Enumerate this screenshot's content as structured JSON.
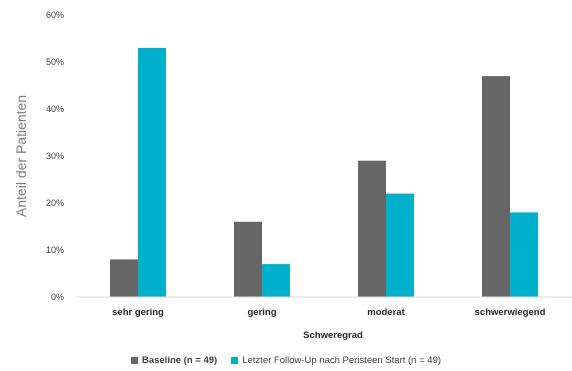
{
  "chart_data": {
    "type": "bar",
    "categories": [
      "sehr gering",
      "gering",
      "moderat",
      "schwerwiegend"
    ],
    "series": [
      {
        "name": "Baseline (n = 49)",
        "values": [
          8,
          16,
          29,
          47
        ],
        "color": "#666666"
      },
      {
        "name": "Letzter Follow-Up nach Peristeen Start (n = 49)",
        "values": [
          53,
          7,
          22,
          18
        ],
        "color": "#00b0ca"
      }
    ],
    "ylim": [
      0,
      60
    ],
    "yticks": [
      "0%",
      "10%",
      "20%",
      "30%",
      "40%",
      "50%",
      "60%"
    ],
    "ylabel": "Anteil der Patienten",
    "xlabel": "Schweregrad",
    "grid": false,
    "legend_position": "bottom"
  }
}
